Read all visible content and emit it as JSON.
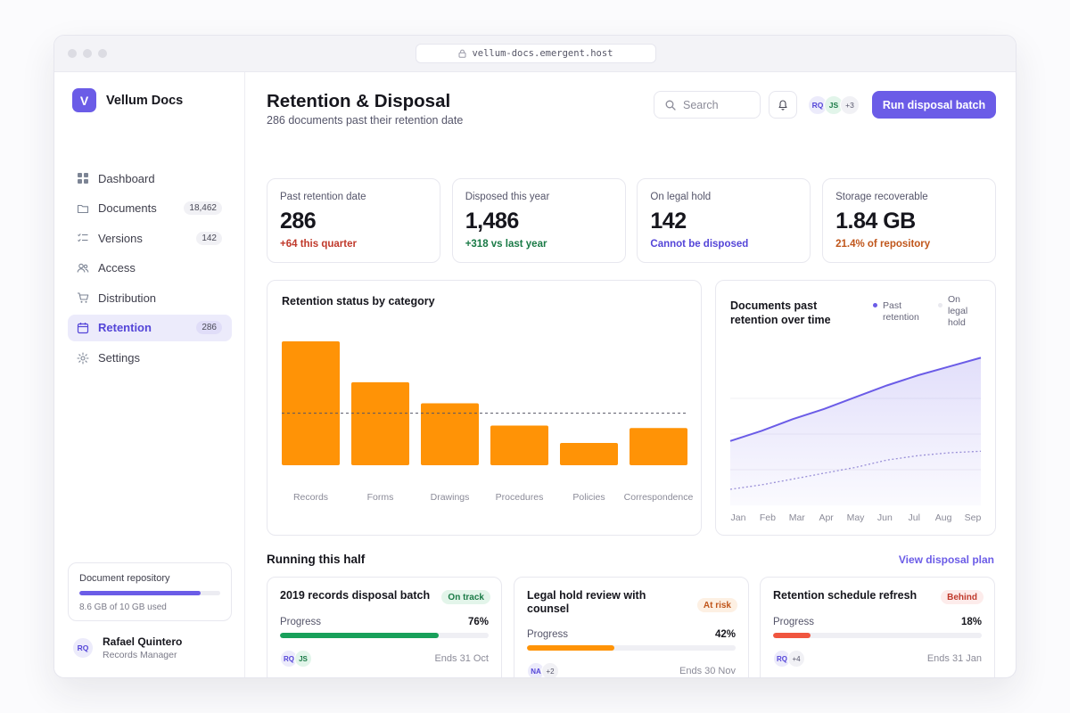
{
  "browser": {
    "url": "vellum-docs.emergent.host"
  },
  "brand": {
    "initial": "V",
    "name": "Vellum Docs"
  },
  "nav": [
    {
      "label": "Dashboard",
      "icon": "grid-icon",
      "badge": ""
    },
    {
      "label": "Documents",
      "icon": "folder-icon",
      "badge": "18,462"
    },
    {
      "label": "Versions",
      "icon": "list-check-icon",
      "badge": "142"
    },
    {
      "label": "Access",
      "icon": "users-icon",
      "badge": ""
    },
    {
      "label": "Distribution",
      "icon": "cart-icon",
      "badge": ""
    },
    {
      "label": "Retention",
      "icon": "calendar-icon",
      "badge": "286",
      "active": true
    },
    {
      "label": "Settings",
      "icon": "gear-icon",
      "badge": ""
    }
  ],
  "repository": {
    "title": "Document repository",
    "used_fraction": 0.86,
    "text": "8.6 GB of 10 GB used"
  },
  "user": {
    "initials": "RQ",
    "name": "Rafael Quintero",
    "role": "Records Manager"
  },
  "header": {
    "title": "Retention & Disposal",
    "subtitle": "286 documents past their retention date",
    "search_placeholder": "Search",
    "avatars": [
      "RQ",
      "JS",
      "+3"
    ],
    "primary_button": "Run disposal batch"
  },
  "kpis": [
    {
      "label": "Past retention date",
      "value": "286",
      "delta": "+64 this quarter",
      "delta_color": "#c0392b"
    },
    {
      "label": "Disposed this year",
      "value": "1,486",
      "delta": "+318 vs last year",
      "delta_color": "#1a7a46"
    },
    {
      "label": "On legal hold",
      "value": "142",
      "delta": "Cannot be disposed",
      "delta_color": "#5445d8"
    },
    {
      "label": "Storage recoverable",
      "value": "1.84 GB",
      "delta": "21.4% of repository",
      "delta_color": "#c0561b"
    }
  ],
  "bar_chart": {
    "title": "Retention status by category",
    "chart_data": {
      "type": "bar",
      "categories": [
        "Records",
        "Forms",
        "Drawings",
        "Procedures",
        "Policies",
        "Correspondence"
      ],
      "values": [
        100,
        67,
        50,
        32,
        18,
        30
      ],
      "reference_line": 42,
      "ylim": [
        0,
        100
      ],
      "color": "#ff9306"
    }
  },
  "area_chart": {
    "title": "Documents past retention over time",
    "legend": [
      "Past retention",
      "On legal hold"
    ],
    "chart_data": {
      "type": "area",
      "categories": [
        "Jan",
        "Feb",
        "Mar",
        "Apr",
        "May",
        "Jun",
        "Jul",
        "Aug",
        "Sep"
      ],
      "ylim": [
        0,
        100
      ],
      "series": [
        {
          "name": "Past retention",
          "values": [
            44,
            51,
            59,
            66,
            74,
            82,
            89,
            95,
            101
          ],
          "color": "#6b5ce7"
        },
        {
          "name": "On legal hold",
          "values": [
            11,
            14,
            18,
            22,
            26,
            31,
            34,
            36,
            37
          ],
          "color": "#9a90d8"
        }
      ]
    }
  },
  "initiatives": {
    "title": "Running this half",
    "link": "View disposal plan",
    "items": [
      {
        "title": "2019 records disposal batch",
        "status": "On track",
        "status_fg": "#1a7a46",
        "status_bg": "#e3f5ea",
        "progress_label": "Progress",
        "progress_text": "76%",
        "progress": 0.76,
        "bar_color": "#18a05a",
        "avatars": [
          "RQ",
          "JS"
        ],
        "ends": "Ends 31 Oct"
      },
      {
        "title": "Legal hold review with counsel",
        "status": "At risk",
        "status_fg": "#c0561b",
        "status_bg": "#fdf0e3",
        "progress_label": "Progress",
        "progress_text": "42%",
        "progress": 0.42,
        "bar_color": "#ff9306",
        "avatars": [
          "NA",
          "+2"
        ],
        "ends": "Ends 30 Nov"
      },
      {
        "title": "Retention schedule refresh",
        "status": "Behind",
        "status_fg": "#c0392b",
        "status_bg": "#fdeceb",
        "progress_label": "Progress",
        "progress_text": "18%",
        "progress": 0.18,
        "bar_color": "#f0553f",
        "avatars": [
          "RQ",
          "+4"
        ],
        "ends": "Ends 31 Jan"
      }
    ]
  }
}
